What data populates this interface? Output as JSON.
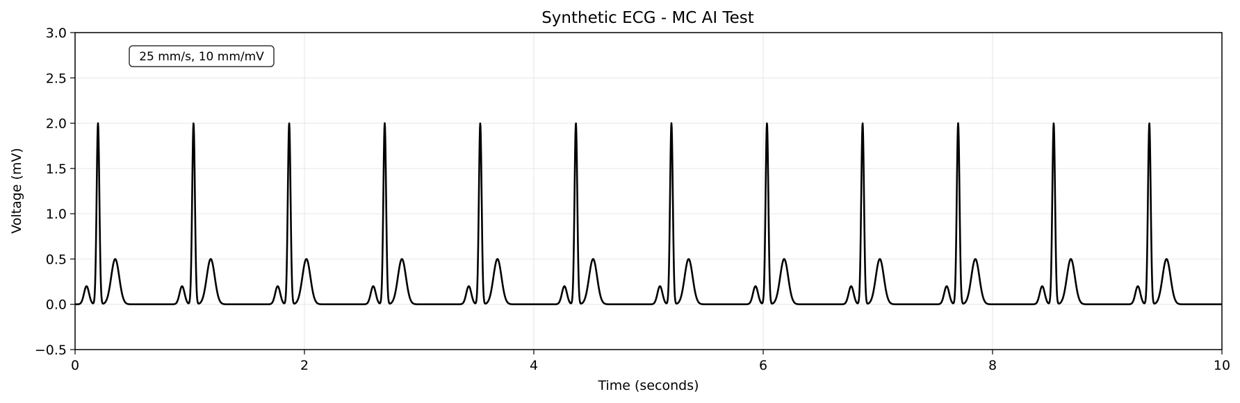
{
  "chart_data": {
    "type": "line",
    "title": "Synthetic ECG - MC AI Test",
    "xlabel": "Time (seconds)",
    "ylabel": "Voltage (mV)",
    "xlim": [
      0,
      10
    ],
    "ylim": [
      -0.5,
      3.0
    ],
    "xticks": [
      0,
      2,
      4,
      6,
      8,
      10
    ],
    "xtick_labels": [
      "0",
      "2",
      "4",
      "6",
      "8",
      "10"
    ],
    "yticks": [
      -0.5,
      0.0,
      0.5,
      1.0,
      1.5,
      2.0,
      2.5,
      3.0
    ],
    "ytick_labels": [
      "−0.5",
      "0.0",
      "0.5",
      "1.0",
      "1.5",
      "2.0",
      "2.5",
      "3.0"
    ],
    "grid": true,
    "annotation": "25 mm/s, 10 mm/mV",
    "line_color": "#000000",
    "series": [
      {
        "beats": {
          "r_peak_times": [
            0.2,
            1.033,
            1.867,
            2.7,
            3.533,
            4.367,
            5.2,
            6.033,
            6.867,
            7.7,
            8.533,
            9.367
          ],
          "p_wave": {
            "offset_s": -0.1,
            "amplitude_mV": 0.2
          },
          "qrs": {
            "offset_s": 0.0,
            "amplitude_mV": 2.0
          },
          "t_wave": {
            "offset_s": 0.15,
            "amplitude_mV": 0.5
          },
          "baseline_mV": 0.0
        }
      }
    ]
  }
}
